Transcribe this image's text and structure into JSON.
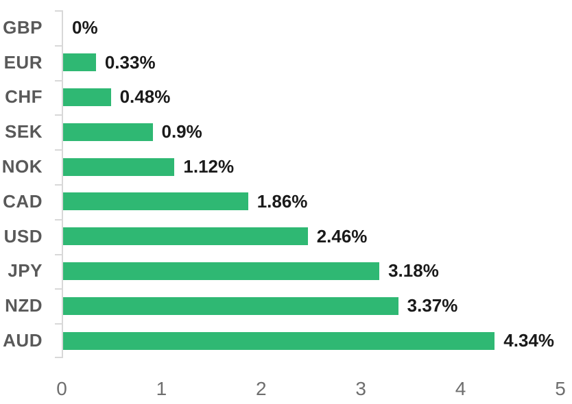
{
  "chart_data": {
    "type": "bar",
    "orientation": "horizontal",
    "title": "",
    "xlabel": "",
    "ylabel": "",
    "categories": [
      "GBP",
      "EUR",
      "CHF",
      "SEK",
      "NOK",
      "CAD",
      "USD",
      "JPY",
      "NZD",
      "AUD"
    ],
    "values": [
      0,
      0.33,
      0.48,
      0.9,
      1.12,
      1.86,
      2.46,
      3.18,
      3.37,
      4.34
    ],
    "value_labels": [
      "0%",
      "0.33%",
      "0.48%",
      "0.9%",
      "1.12%",
      "1.86%",
      "2.46%",
      "3.18%",
      "3.37%",
      "4.34%"
    ],
    "x_ticks": [
      "0",
      "1",
      "2",
      "3",
      "4",
      "5"
    ],
    "xlim": [
      0,
      5
    ],
    "grid": false,
    "legend": "none",
    "colors": {
      "bar": "#2fb873",
      "category_label": "#595959",
      "value_label": "#1a1a1a",
      "axis_line": "#d8d8d8",
      "axis_tick_label": "#6e6e6e",
      "background": "#ffffff"
    }
  }
}
